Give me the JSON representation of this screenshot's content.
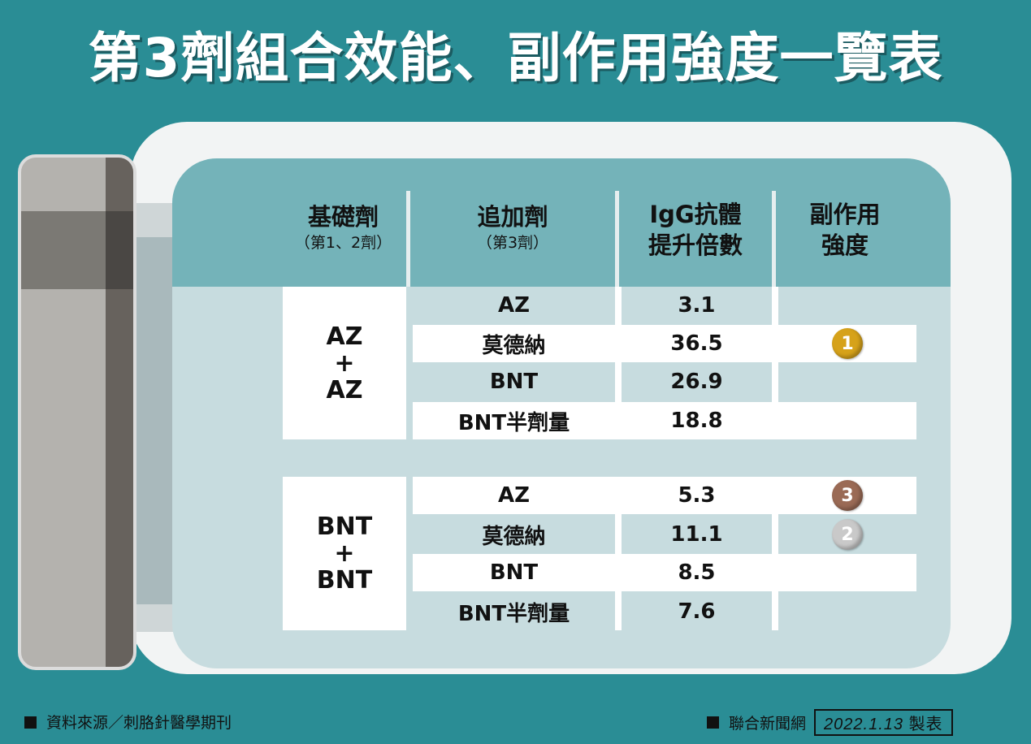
{
  "title": "第3劑組合效能、副作用強度一覽表",
  "headers": {
    "base": "基礎劑",
    "base_sub": "（第1、2劑）",
    "booster": "追加劑",
    "booster_sub": "（第3劑）",
    "igg_line1": "IgG抗體",
    "igg_line2": "提升倍數",
    "side_line1": "副作用",
    "side_line2": "強度"
  },
  "groups": [
    {
      "base": [
        "AZ",
        "+",
        "AZ"
      ],
      "rows": [
        {
          "booster": "AZ",
          "igg": "3.1",
          "rank": ""
        },
        {
          "booster": "莫德納",
          "igg": "36.5",
          "rank": "1"
        },
        {
          "booster": "BNT",
          "igg": "26.9",
          "rank": ""
        },
        {
          "booster": "BNT半劑量",
          "igg": "18.8",
          "rank": ""
        }
      ]
    },
    {
      "base": [
        "BNT",
        "+",
        "BNT"
      ],
      "rows": [
        {
          "booster": "AZ",
          "igg": "5.3",
          "rank": "3"
        },
        {
          "booster": "莫德納",
          "igg": "11.1",
          "rank": "2"
        },
        {
          "booster": "BNT",
          "igg": "8.5",
          "rank": ""
        },
        {
          "booster": "BNT半劑量",
          "igg": "7.6",
          "rank": ""
        }
      ]
    }
  ],
  "medal_colors": {
    "gold": "#d6a21a",
    "silver": "#c9c9c9",
    "bronze": "#9a6a55"
  },
  "footer": {
    "source": "資料來源／刺胳針醫學期刊",
    "publisher": "聯合新聞網",
    "date": "2022.1.13",
    "made": "製表"
  }
}
